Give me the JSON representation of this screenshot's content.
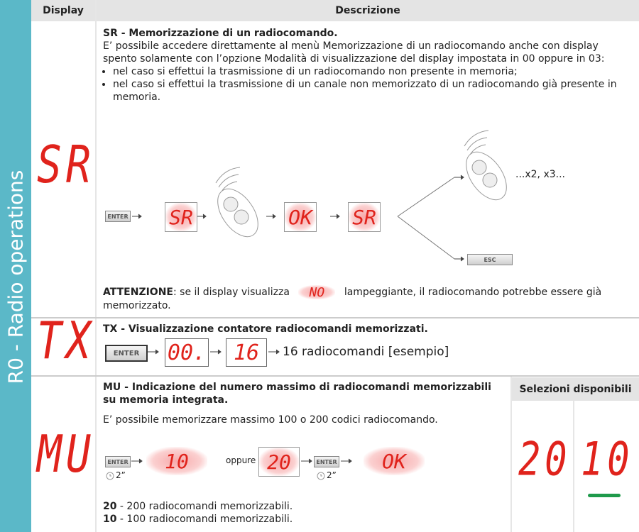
{
  "side_label": "R0 - Radio operations",
  "header": {
    "display": "Display",
    "description": "Descrizione"
  },
  "rows": [
    {
      "code": "SR",
      "title": "SR - Memorizzazione di un radiocomando.",
      "text": "E’ possibile accedere direttamente al menù Memorizzazione di un radiocomando anche con display spento solamente con l’opzione Modalità di visualizzazione del display impostata in 00 oppure in 03:",
      "bullets": [
        "nel caso si effettui la trasmissione di un radiocomando non presente in memoria;",
        "nel caso si effettui la trasmissione di un canale non memorizzato di un radiocomando già presente in memoria."
      ],
      "diagram": {
        "enter": "ENTER",
        "display_1": "SR",
        "display_2": "OK",
        "display_3": "SR",
        "repeat": "...x2, x3...",
        "esc": "ESC"
      },
      "warning_label": "ATTENZIONE",
      "warning_text_1": ": se il display visualizza",
      "warning_display": "NO",
      "warning_text_2": "lampeggiante, il radiocomando potrebbe essere già memorizzato."
    },
    {
      "code": "TX",
      "title": "TX - Visualizzazione contatore radiocomandi memorizzati.",
      "diagram": {
        "enter": "ENTER",
        "display_1": "00.",
        "display_2": "16",
        "result": "16 radiocomandi [esempio]"
      }
    },
    {
      "code": "MU",
      "title": "MU - Indicazione del numero massimo di radiocomandi memorizzabili su memoria integrata.",
      "text": "E’ possibile memorizzare massimo 100 o 200 codici radiocomando.",
      "diagram": {
        "enter": "ENTER",
        "display_1": "10",
        "or": "oppure",
        "display_2": "20",
        "display_3": "OK",
        "hold": "2”"
      },
      "options": [
        {
          "value": "20",
          "text": " - 200 radiocomandi memorizzabili."
        },
        {
          "value": "10",
          "text": " - 100 radiocomandi memorizzabili."
        }
      ],
      "panel_title": "Selezioni disponibili",
      "selections": [
        "20",
        "10"
      ]
    }
  ]
}
